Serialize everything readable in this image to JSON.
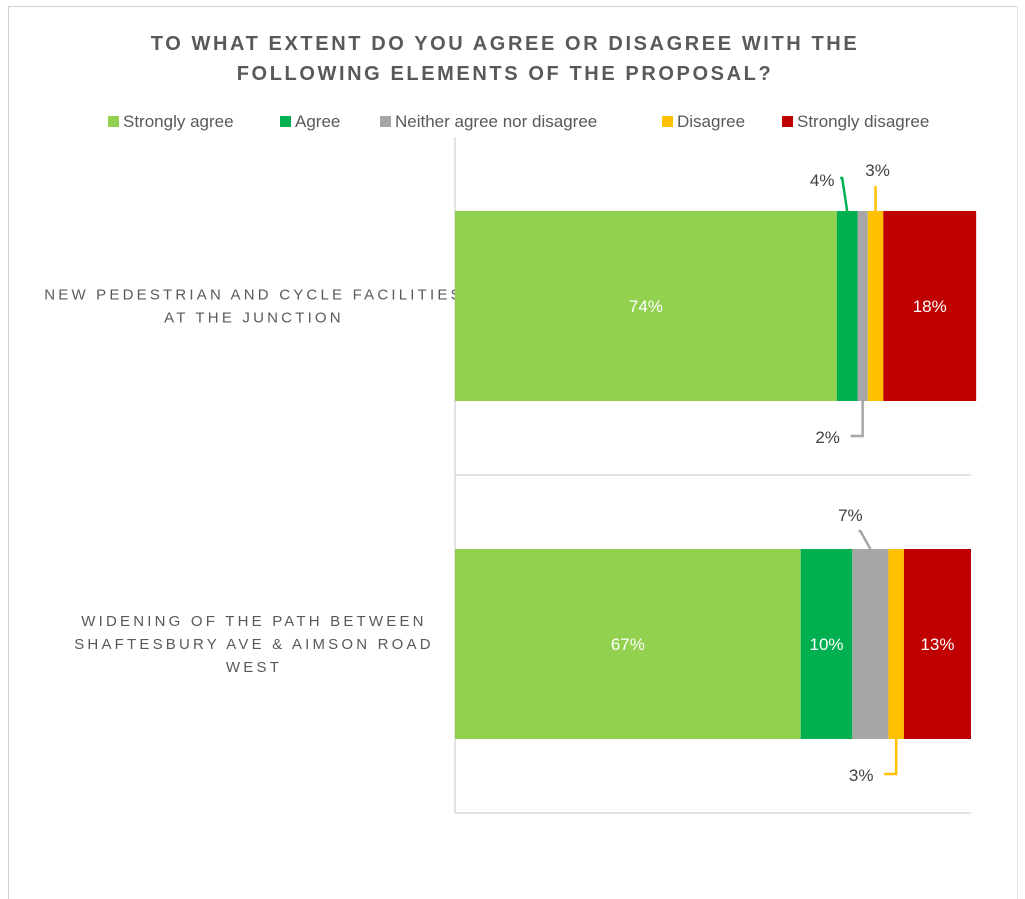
{
  "chart_data": {
    "type": "bar",
    "orientation": "horizontal",
    "stacked": true,
    "title_lines": [
      "TO WHAT EXTENT DO YOU AGREE OR DISAGREE WITH THE",
      "FOLLOWING ELEMENTS OF THE PROPOSAL?"
    ],
    "legend_position": "top",
    "categories": [
      [
        "NEW PEDESTRIAN AND CYCLE FACILITIES",
        "AT THE JUNCTION"
      ],
      [
        "WIDENING OF THE PATH BETWEEN",
        "SHAFTESBURY AVE & AIMSON ROAD",
        "WEST"
      ]
    ],
    "series": [
      {
        "name": "Strongly agree",
        "color": "#92d050",
        "values": [
          74,
          67
        ],
        "labels": [
          "74%",
          "67%"
        ]
      },
      {
        "name": "Agree",
        "color": "#00b050",
        "values": [
          4,
          10
        ],
        "labels": [
          "4%",
          "10%"
        ]
      },
      {
        "name": "Neither agree nor disagree",
        "color": "#a6a6a6",
        "values": [
          2,
          7
        ],
        "labels": [
          "2%",
          "7%"
        ]
      },
      {
        "name": "Disagree",
        "color": "#ffc000",
        "values": [
          3,
          3
        ],
        "labels": [
          "3%",
          "3%"
        ]
      },
      {
        "name": "Strongly disagree",
        "color": "#c00000",
        "values": [
          18,
          13
        ],
        "labels": [
          "18%",
          "13%"
        ]
      }
    ],
    "xlim": [
      0,
      100
    ],
    "grid": false
  }
}
